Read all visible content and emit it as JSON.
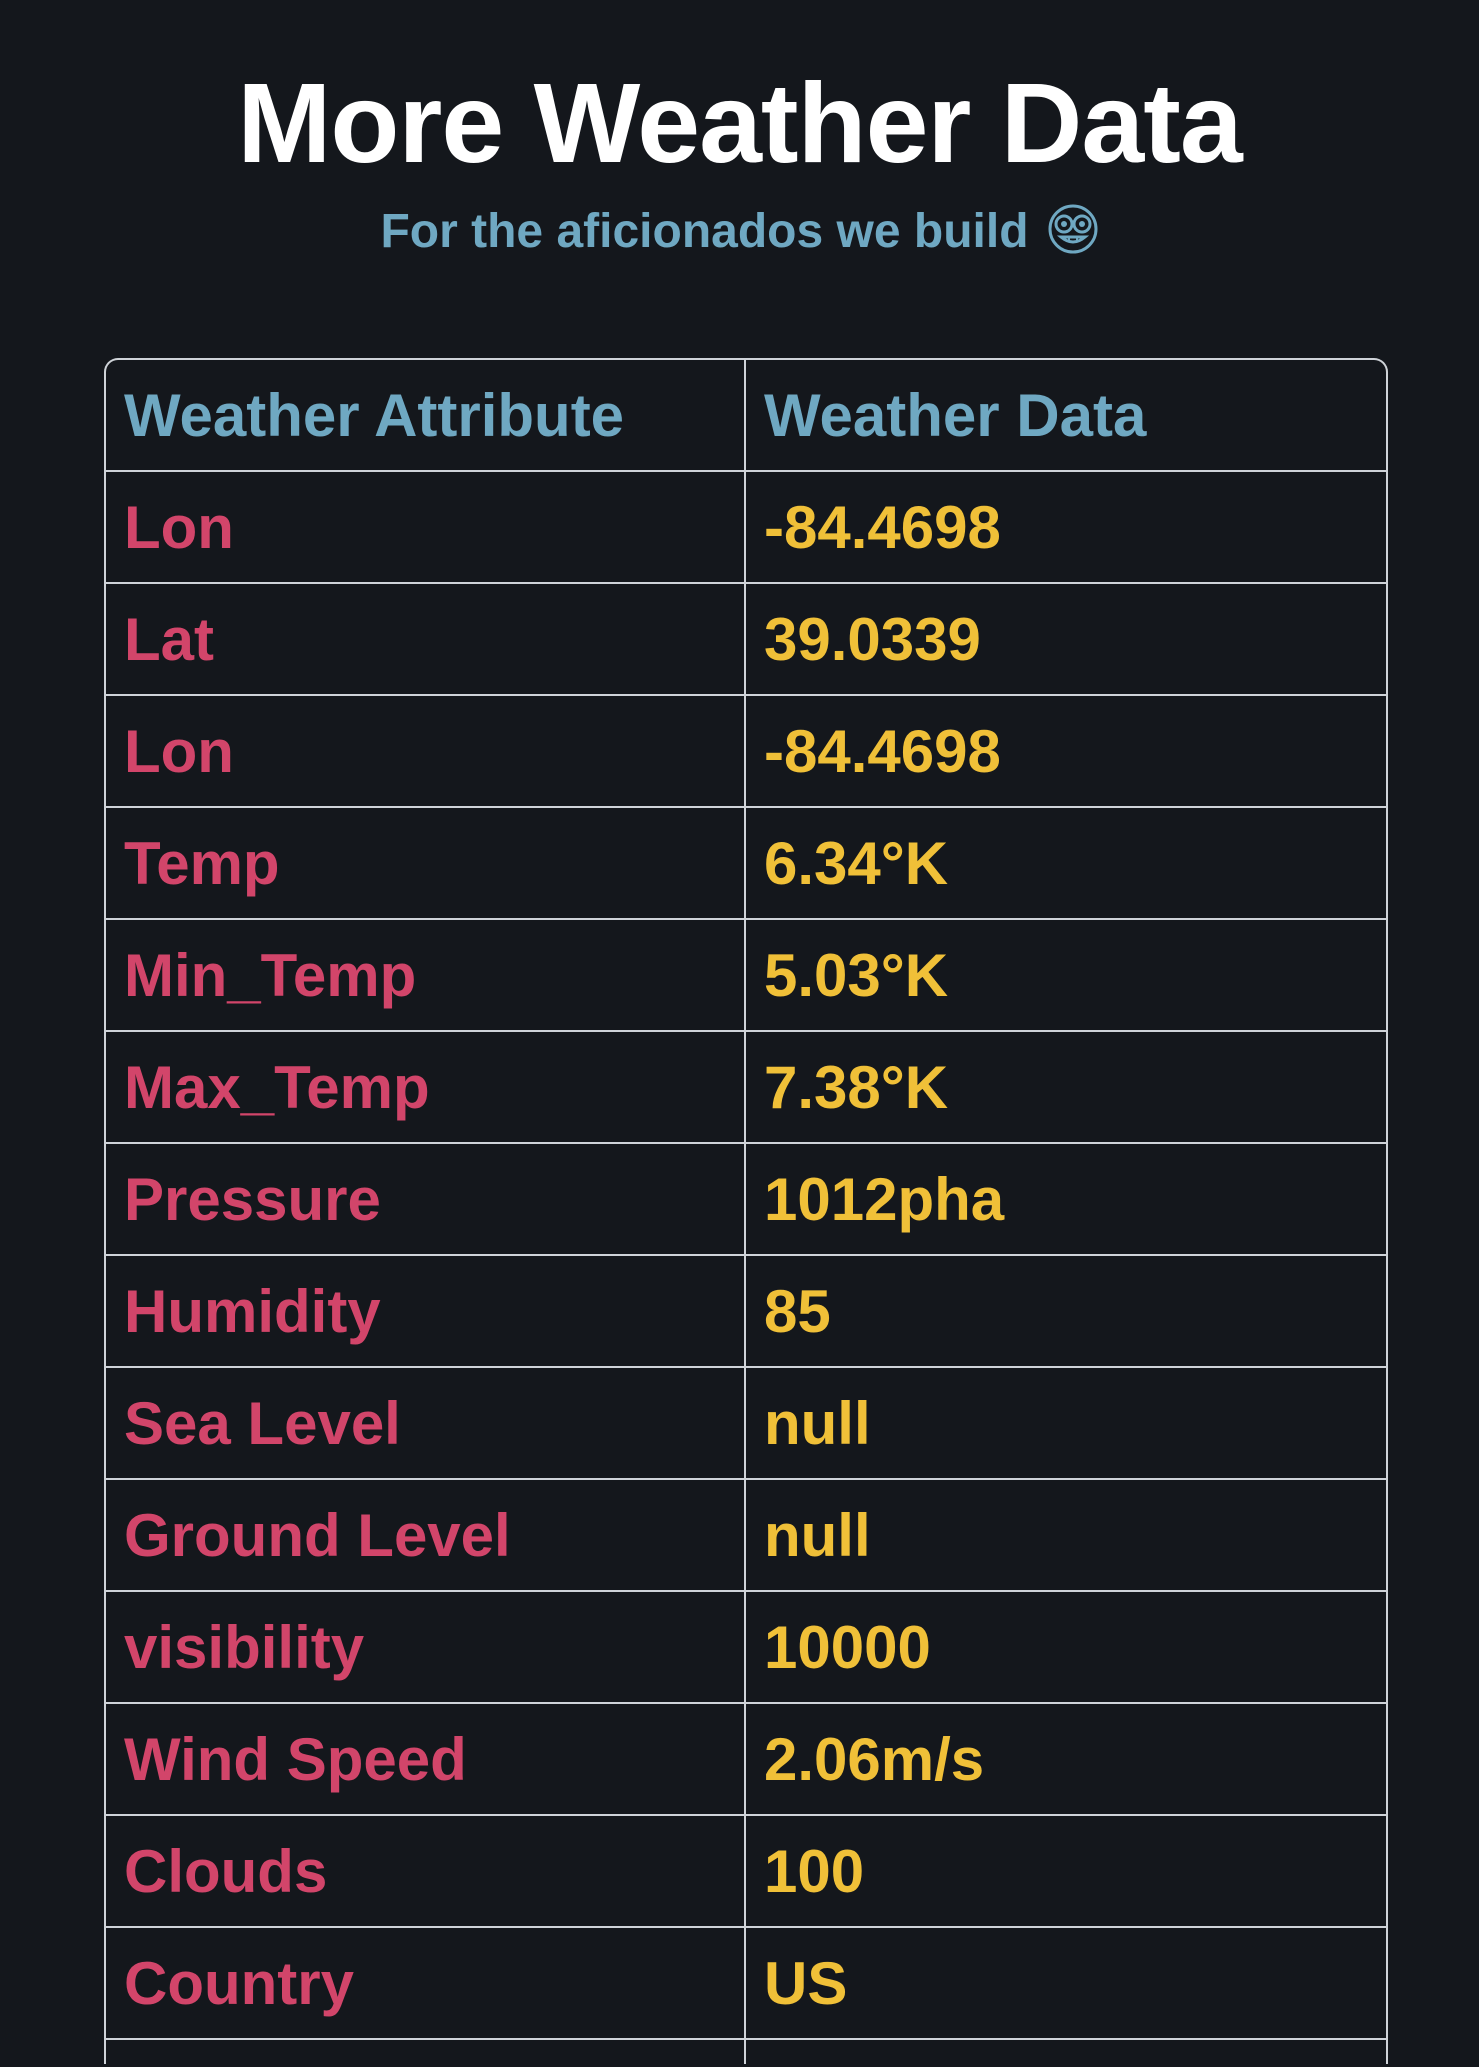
{
  "header": {
    "title": "More Weather Data",
    "subtitle": "For the aficionados we build",
    "subtitle_icon": "nerd-face-emoji"
  },
  "table": {
    "columns": [
      "Weather Attribute",
      "Weather Data"
    ],
    "rows": [
      {
        "attribute": "Lon",
        "value": "-84.4698"
      },
      {
        "attribute": "Lat",
        "value": "39.0339"
      },
      {
        "attribute": "Lon",
        "value": "-84.4698"
      },
      {
        "attribute": "Temp",
        "value": "6.34°K"
      },
      {
        "attribute": "Min_Temp",
        "value": "5.03°K"
      },
      {
        "attribute": "Max_Temp",
        "value": "7.38°K"
      },
      {
        "attribute": "Pressure",
        "value": "1012pha"
      },
      {
        "attribute": "Humidity",
        "value": "85"
      },
      {
        "attribute": "Sea Level",
        "value": "null"
      },
      {
        "attribute": "Ground Level",
        "value": "null"
      },
      {
        "attribute": "visibility",
        "value": "10000"
      },
      {
        "attribute": "Wind Speed",
        "value": "2.06m/s"
      },
      {
        "attribute": "Clouds",
        "value": "100"
      },
      {
        "attribute": "Country",
        "value": "US"
      }
    ]
  },
  "colors": {
    "background": "#14171c",
    "title": "#ffffff",
    "accent_blue": "#6fa8c2",
    "attribute_red": "#d2456a",
    "value_yellow": "#f0c038",
    "border": "#cfd3d8"
  }
}
